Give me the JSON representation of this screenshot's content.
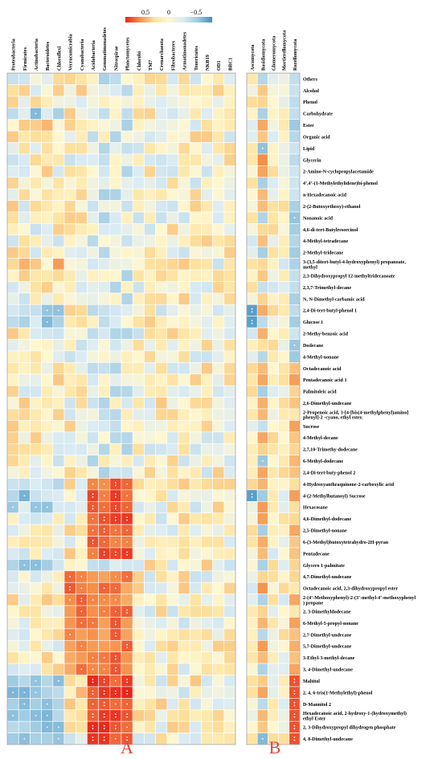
{
  "chart_data": {
    "type": "heatmap",
    "title": "",
    "panels": [
      {
        "label": "A",
        "columns": [
          "Proteobacteria",
          "Firmicutes",
          "Actinobacteria",
          "Bacteroidetes",
          "Chloroflexi",
          "Verrucomicrobia",
          "Cyanobacteria",
          "Acidobacteria",
          "Gemmatimonadetes",
          "Nitrospirae",
          "Planctomycetes",
          "Chlorobi",
          "TM7",
          "Crenarchaeota",
          "Fibrobacteres",
          "Armatimonadetes",
          "Tenericutes",
          "NKB19",
          "OD1",
          "BRC1"
        ]
      },
      {
        "label": "B",
        "columns": [
          "Ascomycota",
          "Basidiomycota",
          "Glomeromycota",
          "Mortierellomycota",
          "Rozellomycota"
        ]
      }
    ],
    "rows": [
      "Others",
      "Alcohol",
      "Phenol",
      "Carbohydrate",
      "Ester",
      "Organic acid",
      "Lipid",
      "Glycerin",
      "2-Amino-N-cyclopropylacetamide",
      "4’,4’-(1-Methylethylidene)bi-phenol",
      "n-Hexadecanoic acid",
      "2-(2-Butoxyethoxy)-ethanol",
      "Nonanoic acid",
      "4,6-di-tert-Butylresorcinol",
      "4-Methyl-tetradecane",
      "2-Methyl-tridecane",
      "3-(3,5-ditert-butyl-4-hydroxyphenyl) propanoate, methyl",
      "2,3-Dihydroxypropyl 12-methyltridecanoate",
      "2,3,7-Trimethyl-decane",
      "N, N-Dimethyl-carbamic acid",
      "2,4-Di-tert-butyl-phenol 1",
      "Glucose 1",
      "2-Methy-benzoic acid",
      "Dodecane",
      "4-Methyl-nonane",
      "Octadecanoic acid",
      "Pentadecanoic acid 1",
      "Palmitoleic acid",
      "2,6-Dimethyl-undecane",
      "2-Propenoic acid, 3-[4-[bis(4-methylphenyl)amino] phenyl]-2 -cyano, ethyl ester.",
      "Sucrose",
      "4-Methyl-decane",
      "2,7,10-Trimethy-dodecane",
      "6-Methyl-dodecane",
      "2,4-Di-tert-buty-phenol 2",
      "4-Hydroxyanthraquinone-2-carboxylic acid",
      "4-(2-Methylbutanoyl) Sucrose",
      "Hexacosane",
      "4,6-Dimethyl-dodecane",
      "2,5-Dimethyl-nonane",
      "6-(3-Methyl)butoxytetrahydro-2H-pyran",
      "Pentadecane",
      "Glycero 1-palmitate",
      "4,7-Dimethyl-undecane",
      "Octadecanoic acid, 2,3-dihydroxypropyl ester",
      "2-(4’-Methoxyphenyl)-2-(3’-methyl-4’-methoxyphenyl) propane",
      "2, 3-Dimethyldodecane",
      "6-Methyl-5-propyl-nonane",
      "2,7-Dimethyl-undecane",
      "5,7-Dimethyl-undecane",
      "3-Ethyl-3-methyl-decane",
      "3, 4-Dimethyl-undecane",
      "Maltitol",
      "2, 4, 6-tris(1-Methylethyl)-phenol",
      "D-Mannitol 2",
      "Hexadecanoic acid, 2-hydroxy-1-(hydroxymethyl) ethyl Ester",
      "2, 3-Dihydroxypropyl dihydrogen phosphate",
      "4, 8-Dimethyl-undecane"
    ],
    "colorbar": {
      "ticks": [
        "0.5",
        "0",
        "−0.5"
      ],
      "colors": [
        "#e8231b",
        "#f58f4a",
        "#fde3a0",
        "#fff7d0",
        "#dcecf3",
        "#9ecae1",
        "#3f8ec2"
      ]
    },
    "value_range": [
      -0.8,
      0.8
    ]
  }
}
